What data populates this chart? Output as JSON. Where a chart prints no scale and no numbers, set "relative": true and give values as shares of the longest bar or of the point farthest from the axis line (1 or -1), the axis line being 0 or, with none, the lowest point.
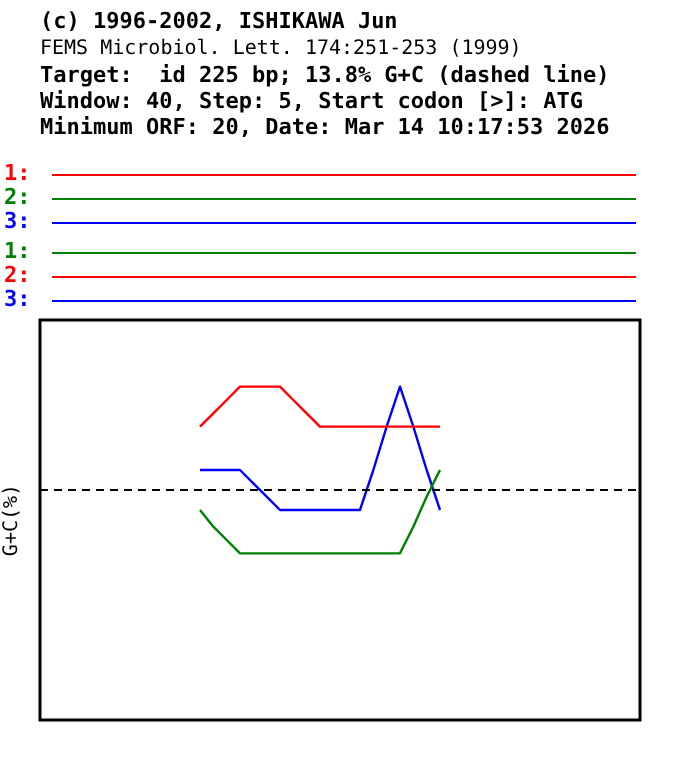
{
  "chart_data": {
    "type": "line",
    "title": "(c) 1996-2002, ISHIKAWA Jun",
    "subtitle": "FEMS Microbiol. Lett. 174:251-253 (1999)",
    "annotations": [
      "Target:  id 225 bp; 13.8% G+C (dashed line)",
      "Window: 40, Step: 5, Start codon [>]: ATG",
      "Minimum ORF: 20, Date: Mar 14 10:17:53 2026",
      "1:",
      "2:",
      "3:",
      "1:",
      "2:",
      "3:"
    ],
    "ylabel": "G+C(%)",
    "relative": true,
    "grid": false,
    "legend": false,
    "categories": [
      null,
      null,
      null,
      null,
      null,
      null,
      null,
      null,
      null,
      null,
      null,
      null,
      null,
      null,
      null,
      null,
      null,
      null,
      null,
      null,
      null,
      null,
      null,
      null,
      null,
      null,
      null,
      null,
      null,
      null,
      null,
      null,
      null,
      null,
      null,
      null,
      null,
      null,
      null,
      null,
      null,
      null,
      null,
      null,
      null,
      null
    ],
    "series": [
      {
        "color": "#ff0000",
        "values": [
          null,
          null,
          null,
          null,
          null,
          null,
          null,
          null,
          null,
          null,
          null,
          null,
          0.88,
          0.92,
          0.96,
          1,
          1,
          1,
          1,
          0.96,
          0.92,
          0.88,
          0.88,
          0.88,
          0.88,
          0.88,
          0.88,
          0.88,
          0.88,
          0.88,
          0.88,
          null,
          null,
          null,
          null,
          null,
          null,
          null,
          null,
          null,
          null,
          null,
          null,
          null,
          null,
          null
        ]
      },
      {
        "color": "#008000",
        "values": [
          null,
          null,
          null,
          null,
          null,
          null,
          null,
          null,
          null,
          null,
          null,
          null,
          0.63,
          0.58,
          0.54,
          0.5,
          0.5,
          0.5,
          0.5,
          0.5,
          0.5,
          0.5,
          0.5,
          0.5,
          0.5,
          0.5,
          0.5,
          0.5,
          0.58,
          0.67,
          0.75,
          null,
          null,
          null,
          null,
          null,
          null,
          null,
          null,
          null,
          null,
          null,
          null,
          null,
          null,
          null
        ]
      },
      {
        "color": "#0000ff",
        "values": [
          null,
          null,
          null,
          null,
          null,
          null,
          null,
          null,
          null,
          null,
          null,
          null,
          0.75,
          0.75,
          0.75,
          0.75,
          0.71,
          0.67,
          0.63,
          0.63,
          0.63,
          0.63,
          0.63,
          0.63,
          0.63,
          0.75,
          0.88,
          1,
          0.88,
          0.75,
          0.63,
          null,
          null,
          null,
          null,
          null,
          null,
          null,
          null,
          null,
          null,
          null,
          null,
          null,
          null,
          null
        ]
      }
    ],
    "ref_lines": [
      {
        "axis": "y",
        "value": 0.69,
        "color": "#000000",
        "line_style": "dashed"
      }
    ]
  }
}
